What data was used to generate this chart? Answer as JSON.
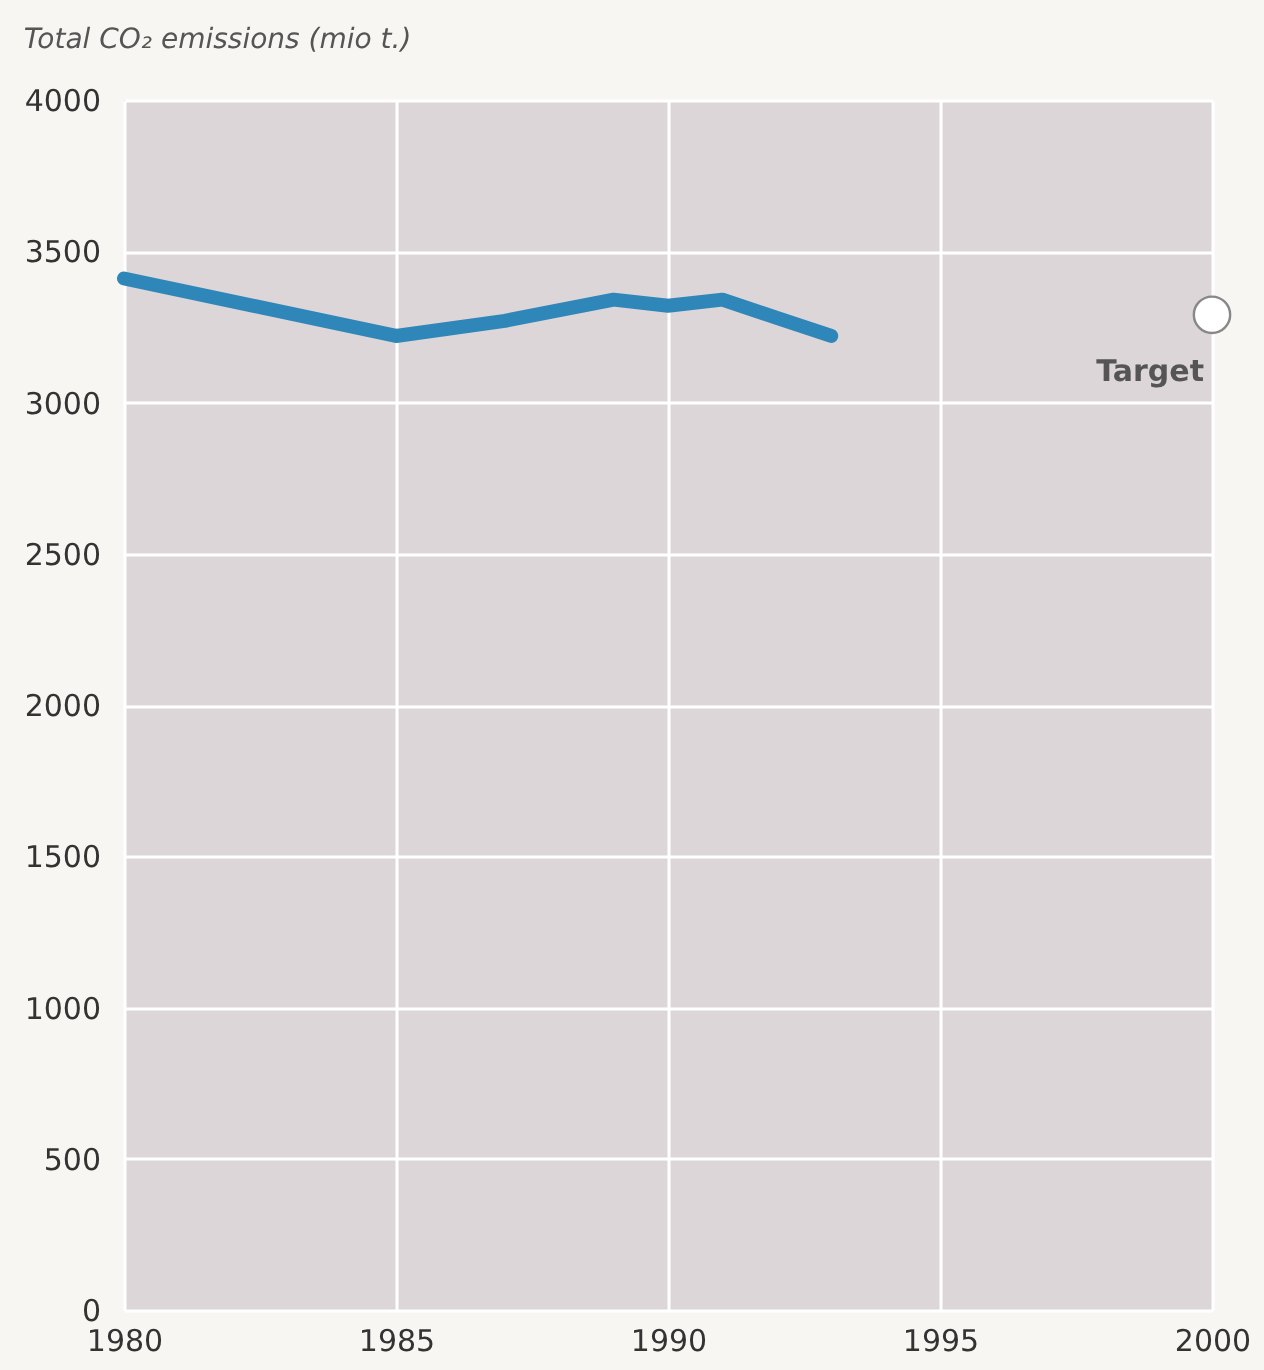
{
  "chart_data": {
    "type": "line",
    "title": "Total CO₂ emissions (mio t.)",
    "xlim": [
      1980,
      2000
    ],
    "xticks": [
      1980,
      1985,
      1990,
      1995,
      2000
    ],
    "ylim": [
      0,
      4000
    ],
    "yticks": [
      0,
      500,
      1000,
      1500,
      2000,
      2500,
      3000,
      3500,
      4000
    ],
    "grid": true,
    "series": [
      {
        "color": "#2f86b8",
        "x": [
          1980,
          1985,
          1987,
          1989,
          1990,
          1991,
          1992,
          1993
        ],
        "values": [
          3410,
          3220,
          3270,
          3340,
          3320,
          3340,
          3280,
          3220
        ]
      },
      {
        "type": "scatter",
        "name": "Target",
        "color": "#ffffff",
        "x": [
          2000
        ],
        "values": [
          3290
        ]
      }
    ]
  }
}
